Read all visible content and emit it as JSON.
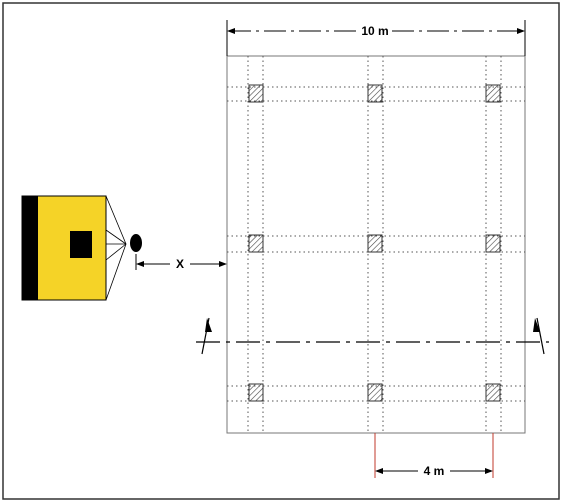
{
  "labels": {
    "top_dimension": "10 m",
    "bottom_dimension": "4 m",
    "distance": "X"
  },
  "colors": {
    "projector_body": "#f5d327",
    "projector_back": "#000000",
    "lens": "#000000",
    "outline": "#000000",
    "grid_line": "#555555",
    "column_hatch": "#444444",
    "extension_line": "#c0392b"
  },
  "icons": {
    "projector": "projector-icon",
    "section_marker": "section-arrow-icon"
  }
}
